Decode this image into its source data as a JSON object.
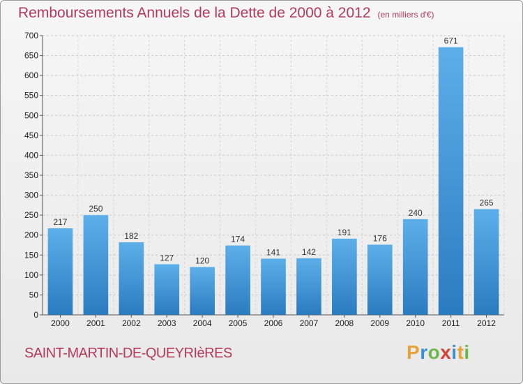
{
  "title": "Remboursements Annuels de la Dette de 2000 à 2012",
  "unit": "(en milliers d'€)",
  "commune": "SAINT-MARTIN-DE-QUEYRIèRES",
  "logo": {
    "letters": [
      "P",
      "r",
      "o",
      "x",
      "i",
      "t",
      "i"
    ],
    "colors": [
      "#e8a23a",
      "#3a8fd6",
      "#6bb84a",
      "#d6423a",
      "#3a8fd6",
      "#e8a23a",
      "#6bb84a"
    ]
  },
  "chart_data": {
    "type": "bar",
    "title": "Remboursements Annuels de la Dette de 2000 à 2012",
    "ylabel": "",
    "xlabel": "",
    "categories": [
      "2000",
      "2001",
      "2002",
      "2003",
      "2004",
      "2005",
      "2006",
      "2007",
      "2008",
      "2009",
      "2010",
      "2011",
      "2012"
    ],
    "values": [
      217,
      250,
      182,
      127,
      120,
      174,
      141,
      142,
      191,
      176,
      240,
      671,
      265
    ],
    "ylim": [
      0,
      700
    ],
    "yticks": [
      0,
      50,
      100,
      150,
      200,
      250,
      300,
      350,
      400,
      450,
      500,
      550,
      600,
      650,
      700
    ],
    "grid": true,
    "bar_color": "#4a9ee0"
  }
}
